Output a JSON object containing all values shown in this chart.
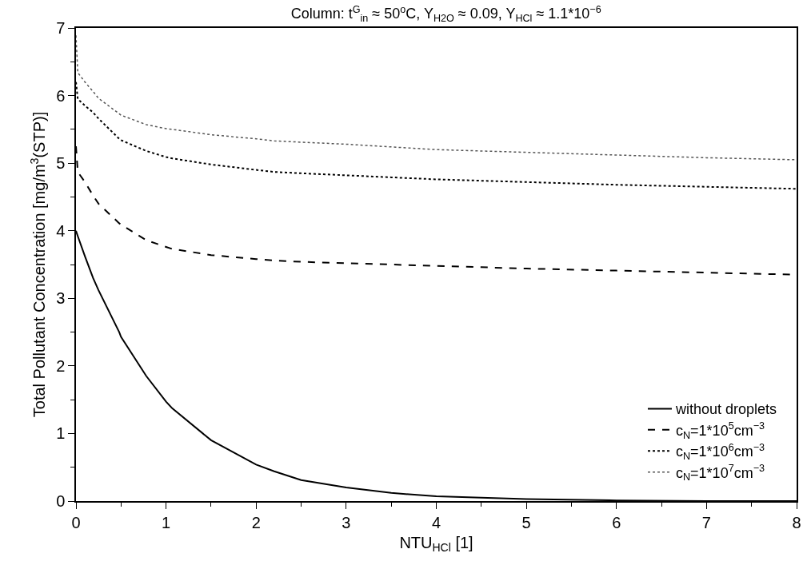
{
  "chart_data": {
    "type": "line",
    "title": "Column: t$^{G}$$_{in}$ ≈ 50$^{o}$C, Y$_{H2O}$ ≈ 0.09, Y$_{HCl}$ ≈ 1.1*10$^{−6}$",
    "xlabel": "NTU$_{HCl}$ [1]",
    "ylabel": "Total Pollutant Concentration [mg/m$^{3}$(STP)]",
    "x": [
      0,
      0.02,
      0.1,
      0.19,
      0.25,
      0.48,
      0.5,
      0.78,
      1,
      1.07,
      1.5,
      2,
      2.2,
      2.5,
      3,
      3.5,
      4,
      5,
      6,
      7,
      8
    ],
    "series": [
      {
        "name": "without droplets",
        "color": "#000000",
        "line_style": "solid",
        "values": [
          4.0,
          3.92,
          3.62,
          3.3,
          3.12,
          2.5,
          2.43,
          1.85,
          1.47,
          1.37,
          0.9,
          0.54,
          0.44,
          0.31,
          0.2,
          0.12,
          0.07,
          0.03,
          0.01,
          0.0,
          0.0
        ]
      },
      {
        "name": "c$_{N}$=1*10$^{5}$cm$^{−3}$",
        "color": "#000000",
        "line_style": "dashed",
        "values": [
          5.25,
          4.87,
          4.72,
          4.52,
          4.4,
          4.11,
          4.09,
          3.86,
          3.76,
          3.73,
          3.64,
          3.58,
          3.56,
          3.54,
          3.52,
          3.5,
          3.48,
          3.44,
          3.41,
          3.38,
          3.35
        ]
      },
      {
        "name": "c$_{N}$=1*10$^{6}$cm$^{−3}$",
        "color": "#000000",
        "line_style": "dotted",
        "values": [
          6.2,
          5.95,
          5.85,
          5.75,
          5.66,
          5.36,
          5.34,
          5.18,
          5.09,
          5.07,
          4.98,
          4.9,
          4.87,
          4.85,
          4.82,
          4.79,
          4.76,
          4.72,
          4.68,
          4.65,
          4.62
        ]
      },
      {
        "name": "c$_{N}$=1*10$^{7}$cm$^{−3}$",
        "color": "#555555",
        "line_style": "dotted",
        "values": [
          6.89,
          6.34,
          6.2,
          6.06,
          5.96,
          5.73,
          5.71,
          5.57,
          5.51,
          5.5,
          5.42,
          5.36,
          5.33,
          5.31,
          5.28,
          5.24,
          5.2,
          5.16,
          5.12,
          5.08,
          5.05
        ]
      }
    ],
    "xlim": [
      0,
      8
    ],
    "xticks": [
      0,
      1,
      2,
      3,
      4,
      5,
      6,
      7,
      8
    ],
    "ylim": [
      0,
      7
    ],
    "yticks": [
      0,
      1,
      2,
      3,
      4,
      5,
      6,
      7
    ],
    "grid": false,
    "legend": "bottom right",
    "marker": "none"
  }
}
